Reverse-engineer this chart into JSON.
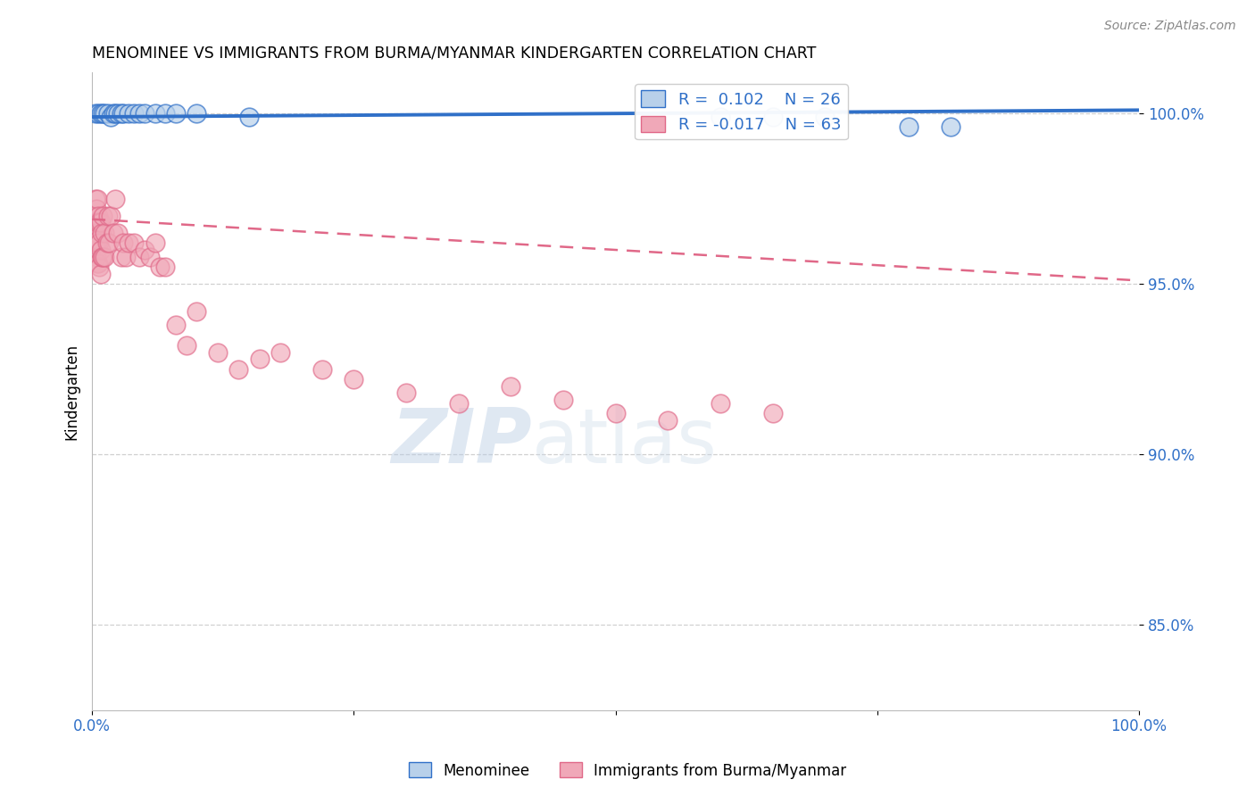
{
  "title": "MENOMINEE VS IMMIGRANTS FROM BURMA/MYANMAR KINDERGARTEN CORRELATION CHART",
  "source": "Source: ZipAtlas.com",
  "ylabel": "Kindergarten",
  "xlim": [
    0,
    1.0
  ],
  "ylim": [
    0.825,
    1.012
  ],
  "yticks": [
    0.85,
    0.9,
    0.95,
    1.0
  ],
  "ytick_labels": [
    "85.0%",
    "90.0%",
    "95.0%",
    "100.0%"
  ],
  "xticks": [
    0.0,
    0.25,
    0.5,
    0.75,
    1.0
  ],
  "xtick_labels": [
    "0.0%",
    "",
    "",
    "",
    "100.0%"
  ],
  "legend_R1": "R =  0.102",
  "legend_N1": "N = 26",
  "legend_R2": "R = -0.017",
  "legend_N2": "N = 63",
  "blue_color": "#b8d0ea",
  "pink_color": "#f0a8b8",
  "blue_line_color": "#3070c8",
  "pink_line_color": "#e06888",
  "blue_scatter_x": [
    0.003,
    0.006,
    0.008,
    0.01,
    0.012,
    0.015,
    0.018,
    0.02,
    0.022,
    0.025,
    0.028,
    0.03,
    0.035,
    0.04,
    0.045,
    0.05,
    0.06,
    0.07,
    0.08,
    0.1,
    0.15,
    0.6,
    0.65,
    0.7,
    0.78,
    0.82
  ],
  "blue_scatter_y": [
    1.0,
    1.0,
    1.0,
    1.0,
    1.0,
    1.0,
    0.999,
    1.0,
    1.0,
    1.0,
    1.0,
    1.0,
    1.0,
    1.0,
    1.0,
    1.0,
    1.0,
    1.0,
    1.0,
    1.0,
    0.999,
    0.999,
    0.999,
    0.999,
    0.996,
    0.996
  ],
  "pink_scatter_x": [
    0.001,
    0.002,
    0.002,
    0.003,
    0.003,
    0.003,
    0.004,
    0.004,
    0.004,
    0.005,
    0.005,
    0.005,
    0.005,
    0.006,
    0.006,
    0.006,
    0.007,
    0.007,
    0.007,
    0.008,
    0.008,
    0.008,
    0.009,
    0.009,
    0.01,
    0.01,
    0.012,
    0.012,
    0.014,
    0.015,
    0.016,
    0.018,
    0.02,
    0.022,
    0.025,
    0.028,
    0.03,
    0.032,
    0.035,
    0.04,
    0.045,
    0.05,
    0.055,
    0.06,
    0.065,
    0.07,
    0.08,
    0.09,
    0.1,
    0.12,
    0.14,
    0.16,
    0.18,
    0.22,
    0.25,
    0.3,
    0.35,
    0.4,
    0.45,
    0.5,
    0.55,
    0.6,
    0.65
  ],
  "pink_scatter_y": [
    0.97,
    0.97,
    0.965,
    0.975,
    0.968,
    0.962,
    0.972,
    0.965,
    0.958,
    0.975,
    0.968,
    0.962,
    0.956,
    0.97,
    0.963,
    0.956,
    0.968,
    0.962,
    0.955,
    0.968,
    0.96,
    0.953,
    0.965,
    0.958,
    0.97,
    0.958,
    0.965,
    0.958,
    0.962,
    0.97,
    0.962,
    0.97,
    0.965,
    0.975,
    0.965,
    0.958,
    0.962,
    0.958,
    0.962,
    0.962,
    0.958,
    0.96,
    0.958,
    0.962,
    0.955,
    0.955,
    0.938,
    0.932,
    0.942,
    0.93,
    0.925,
    0.928,
    0.93,
    0.925,
    0.922,
    0.918,
    0.915,
    0.92,
    0.916,
    0.912,
    0.91,
    0.915,
    0.912
  ],
  "blue_trend_x": [
    0.0,
    1.0
  ],
  "blue_trend_y": [
    0.999,
    1.001
  ],
  "pink_trend_x": [
    0.0,
    1.0
  ],
  "pink_trend_y": [
    0.969,
    0.951
  ],
  "watermark_zip": "ZIP",
  "watermark_atlas": "atlas",
  "background_color": "#ffffff",
  "grid_color": "#d0d0d0"
}
